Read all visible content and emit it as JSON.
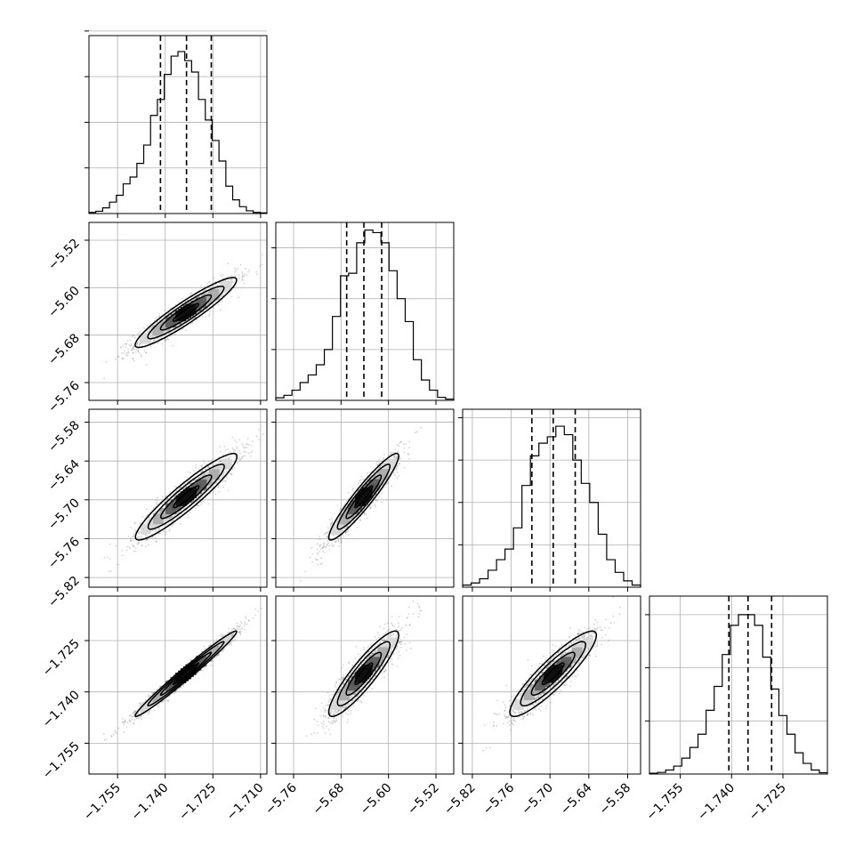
{
  "style": {
    "background": "#ffffff",
    "axes_color": "#000000",
    "grid_color": "#b0b0b0",
    "hist_color": "#000000",
    "scatter_color": "#555555",
    "contour_color": "#000000"
  },
  "chart_data": {
    "type": "corner",
    "grid": true,
    "n_params": 4,
    "parameters": [
      {
        "range": [
          -1.764,
          -1.708
        ],
        "ticks": [
          -1.755,
          -1.74,
          -1.725,
          -1.71
        ],
        "tick_labels": [
          "−1.755",
          "−1.740",
          "−1.725",
          "−1.710"
        ],
        "quantiles": [
          -1.7415,
          -1.7333,
          -1.7255
        ],
        "hist": {
          "counts": [
            0.005,
            0.01,
            0.025,
            0.05,
            0.08,
            0.13,
            0.16,
            0.22,
            0.3,
            0.43,
            0.5,
            0.61,
            0.69,
            0.71,
            0.67,
            0.62,
            0.5,
            0.41,
            0.32,
            0.23,
            0.12,
            0.06,
            0.03,
            0.012,
            0.005,
            0.003
          ],
          "ylim": [
            0,
            0.78
          ],
          "yticks": [
            0.2,
            0.4,
            0.6,
            0.8
          ]
        }
      },
      {
        "range": [
          -5.79,
          -5.49
        ],
        "ticks": [
          -5.76,
          -5.68,
          -5.6,
          -5.52
        ],
        "tick_labels": [
          "−5.76",
          "−5.68",
          "−5.60",
          "−5.52"
        ],
        "quantiles": [
          -5.6705,
          -5.6415,
          -5.6115
        ],
        "hist": {
          "counts": [
            0.01,
            0.02,
            0.04,
            0.07,
            0.1,
            0.14,
            0.2,
            0.33,
            0.49,
            0.5,
            0.62,
            0.67,
            0.66,
            0.62,
            0.51,
            0.4,
            0.31,
            0.16,
            0.08,
            0.04,
            0.012,
            0.005
          ],
          "ylim": [
            0,
            0.7
          ],
          "yticks": [
            0.2,
            0.4,
            0.6
          ]
        }
      },
      {
        "range": [
          -5.835,
          -5.56
        ],
        "ticks": [
          -5.82,
          -5.76,
          -5.7,
          -5.64,
          -5.58
        ],
        "tick_labels": [
          "−5.82",
          "−5.76",
          "−5.70",
          "−5.64",
          "−5.58"
        ],
        "quantiles": [
          -5.728,
          -5.695,
          -5.661
        ],
        "hist": {
          "counts": [
            0.01,
            0.02,
            0.04,
            0.08,
            0.13,
            0.18,
            0.28,
            0.48,
            0.62,
            0.68,
            0.71,
            0.76,
            0.72,
            0.6,
            0.49,
            0.4,
            0.25,
            0.13,
            0.07,
            0.03,
            0.01
          ],
          "ylim": [
            0,
            0.84
          ],
          "yticks": [
            0.2,
            0.4,
            0.6,
            0.8
          ]
        }
      },
      {
        "range": [
          -1.764,
          -1.712
        ],
        "ticks": [
          -1.755,
          -1.74,
          -1.725
        ],
        "tick_labels": [
          "−1.755",
          "−1.740",
          "−1.725"
        ],
        "quantiles": [
          -1.7408,
          -1.7352,
          -1.7283
        ],
        "hist": {
          "counts": [
            0.003,
            0.006,
            0.015,
            0.03,
            0.06,
            0.1,
            0.15,
            0.24,
            0.33,
            0.45,
            0.56,
            0.6,
            0.6,
            0.56,
            0.44,
            0.32,
            0.22,
            0.15,
            0.08,
            0.04,
            0.015,
            0.005
          ],
          "ylim": [
            0,
            0.67
          ],
          "yticks": [
            0.2,
            0.4,
            0.6
          ]
        }
      }
    ],
    "pairs": [
      {
        "x": 0,
        "y": 1,
        "mean": [
          -1.7335,
          -5.6418
        ],
        "corr": 0.93
      },
      {
        "x": 0,
        "y": 2,
        "mean": [
          -1.7334,
          -5.6952
        ],
        "corr": 0.93
      },
      {
        "x": 1,
        "y": 2,
        "mean": [
          -5.6418,
          -5.6952
        ],
        "corr": 0.94
      },
      {
        "x": 0,
        "y": 3,
        "mean": [
          -1.7335,
          -1.7347
        ],
        "corr": 0.985
      },
      {
        "x": 1,
        "y": 3,
        "mean": [
          -5.6418,
          -1.7347
        ],
        "corr": 0.9
      },
      {
        "x": 2,
        "y": 3,
        "mean": [
          -5.6952,
          -1.7347
        ],
        "corr": 0.9
      }
    ]
  }
}
